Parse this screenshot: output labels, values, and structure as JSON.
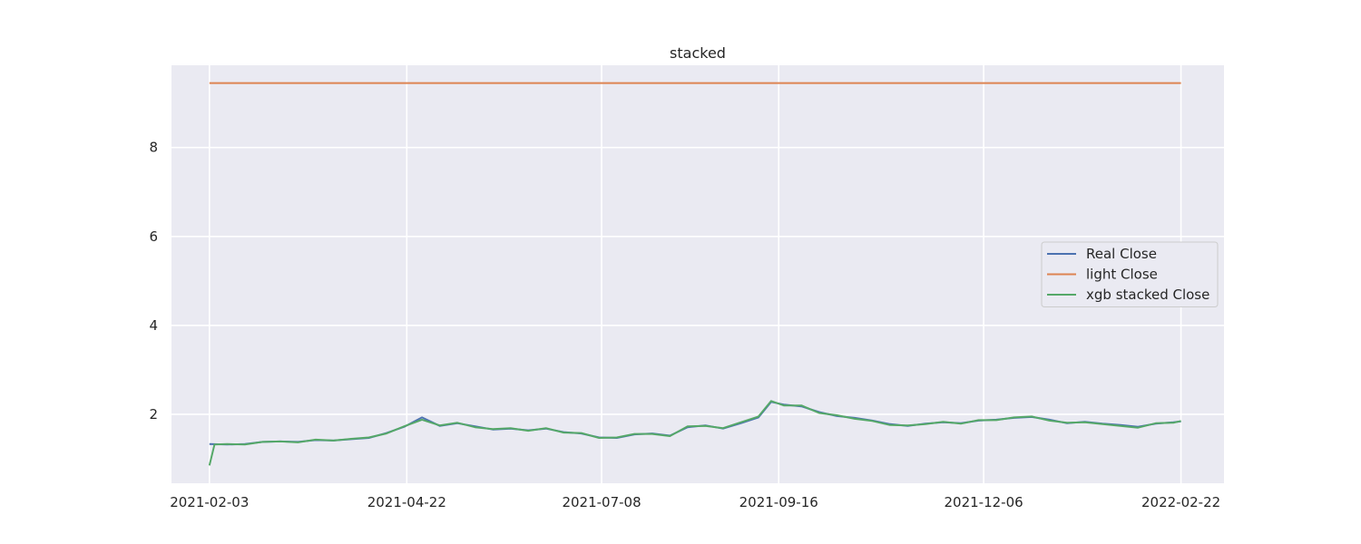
{
  "chart_data": {
    "type": "line",
    "title": "stacked",
    "xlabel": "",
    "ylabel": "",
    "x_ticks": [
      "2021-02-03",
      "2021-04-22",
      "2021-07-08",
      "2021-09-16",
      "2021-12-06",
      "2022-02-22"
    ],
    "y_ticks": [
      2,
      4,
      6,
      8
    ],
    "xlim": [
      "2021-01-19",
      "2022-03-11"
    ],
    "ylim": [
      0.45,
      9.85
    ],
    "grid": true,
    "legend_position": "center-right",
    "series": [
      {
        "name": "Real Close",
        "color": "#4c72b0",
        "points": [
          [
            "2021-02-03",
            1.33
          ],
          [
            "2021-02-10",
            1.32
          ],
          [
            "2021-02-17",
            1.33
          ],
          [
            "2021-02-24",
            1.38
          ],
          [
            "2021-03-03",
            1.39
          ],
          [
            "2021-03-10",
            1.38
          ],
          [
            "2021-03-17",
            1.42
          ],
          [
            "2021-03-24",
            1.41
          ],
          [
            "2021-03-31",
            1.44
          ],
          [
            "2021-04-07",
            1.47
          ],
          [
            "2021-04-14",
            1.58
          ],
          [
            "2021-04-21",
            1.72
          ],
          [
            "2021-04-28",
            1.93
          ],
          [
            "2021-05-05",
            1.74
          ],
          [
            "2021-05-12",
            1.8
          ],
          [
            "2021-05-19",
            1.73
          ],
          [
            "2021-05-26",
            1.66
          ],
          [
            "2021-06-02",
            1.68
          ],
          [
            "2021-06-09",
            1.64
          ],
          [
            "2021-06-16",
            1.68
          ],
          [
            "2021-06-23",
            1.6
          ],
          [
            "2021-06-30",
            1.57
          ],
          [
            "2021-07-07",
            1.48
          ],
          [
            "2021-07-14",
            1.47
          ],
          [
            "2021-07-21",
            1.55
          ],
          [
            "2021-07-28",
            1.57
          ],
          [
            "2021-08-04",
            1.52
          ],
          [
            "2021-08-11",
            1.71
          ],
          [
            "2021-08-18",
            1.75
          ],
          [
            "2021-08-25",
            1.68
          ],
          [
            "2021-09-01",
            1.8
          ],
          [
            "2021-09-08",
            1.93
          ],
          [
            "2021-09-13",
            2.28
          ],
          [
            "2021-09-18",
            2.22
          ],
          [
            "2021-09-25",
            2.18
          ],
          [
            "2021-10-02",
            2.05
          ],
          [
            "2021-10-09",
            1.96
          ],
          [
            "2021-10-16",
            1.92
          ],
          [
            "2021-10-23",
            1.86
          ],
          [
            "2021-10-30",
            1.78
          ],
          [
            "2021-11-06",
            1.74
          ],
          [
            "2021-11-13",
            1.79
          ],
          [
            "2021-11-20",
            1.82
          ],
          [
            "2021-11-27",
            1.8
          ],
          [
            "2021-12-04",
            1.86
          ],
          [
            "2021-12-11",
            1.88
          ],
          [
            "2021-12-18",
            1.92
          ],
          [
            "2021-12-25",
            1.94
          ],
          [
            "2022-01-01",
            1.88
          ],
          [
            "2022-01-08",
            1.8
          ],
          [
            "2022-01-15",
            1.83
          ],
          [
            "2022-01-22",
            1.79
          ],
          [
            "2022-01-29",
            1.76
          ],
          [
            "2022-02-05",
            1.72
          ],
          [
            "2022-02-12",
            1.79
          ],
          [
            "2022-02-19",
            1.82
          ],
          [
            "2022-02-22",
            1.84
          ]
        ]
      },
      {
        "name": "light Close",
        "color": "#dd8452",
        "points": [
          [
            "2021-02-03",
            9.45
          ],
          [
            "2022-02-22",
            9.45
          ]
        ]
      },
      {
        "name": "xgb stacked Close",
        "color": "#55a868",
        "points": [
          [
            "2021-02-03",
            0.85
          ],
          [
            "2021-02-05",
            1.32
          ],
          [
            "2021-02-10",
            1.33
          ],
          [
            "2021-02-17",
            1.32
          ],
          [
            "2021-02-24",
            1.38
          ],
          [
            "2021-03-03",
            1.39
          ],
          [
            "2021-03-10",
            1.37
          ],
          [
            "2021-03-17",
            1.43
          ],
          [
            "2021-03-24",
            1.41
          ],
          [
            "2021-03-31",
            1.45
          ],
          [
            "2021-04-07",
            1.48
          ],
          [
            "2021-04-14",
            1.57
          ],
          [
            "2021-04-21",
            1.73
          ],
          [
            "2021-04-28",
            1.88
          ],
          [
            "2021-05-05",
            1.75
          ],
          [
            "2021-05-12",
            1.81
          ],
          [
            "2021-05-19",
            1.71
          ],
          [
            "2021-05-26",
            1.67
          ],
          [
            "2021-06-02",
            1.69
          ],
          [
            "2021-06-09",
            1.63
          ],
          [
            "2021-06-16",
            1.69
          ],
          [
            "2021-06-23",
            1.59
          ],
          [
            "2021-06-30",
            1.58
          ],
          [
            "2021-07-07",
            1.47
          ],
          [
            "2021-07-14",
            1.48
          ],
          [
            "2021-07-21",
            1.56
          ],
          [
            "2021-07-28",
            1.56
          ],
          [
            "2021-08-04",
            1.51
          ],
          [
            "2021-08-11",
            1.73
          ],
          [
            "2021-08-18",
            1.74
          ],
          [
            "2021-08-25",
            1.69
          ],
          [
            "2021-09-01",
            1.82
          ],
          [
            "2021-09-08",
            1.95
          ],
          [
            "2021-09-13",
            2.3
          ],
          [
            "2021-09-18",
            2.2
          ],
          [
            "2021-09-25",
            2.2
          ],
          [
            "2021-10-02",
            2.03
          ],
          [
            "2021-10-09",
            1.98
          ],
          [
            "2021-10-16",
            1.9
          ],
          [
            "2021-10-23",
            1.85
          ],
          [
            "2021-10-30",
            1.76
          ],
          [
            "2021-11-06",
            1.75
          ],
          [
            "2021-11-13",
            1.78
          ],
          [
            "2021-11-20",
            1.83
          ],
          [
            "2021-11-27",
            1.79
          ],
          [
            "2021-12-04",
            1.87
          ],
          [
            "2021-12-11",
            1.87
          ],
          [
            "2021-12-18",
            1.93
          ],
          [
            "2021-12-25",
            1.95
          ],
          [
            "2022-01-01",
            1.86
          ],
          [
            "2022-01-08",
            1.81
          ],
          [
            "2022-01-15",
            1.82
          ],
          [
            "2022-01-22",
            1.78
          ],
          [
            "2022-01-29",
            1.74
          ],
          [
            "2022-02-05",
            1.7
          ],
          [
            "2022-02-12",
            1.8
          ],
          [
            "2022-02-19",
            1.81
          ],
          [
            "2022-02-22",
            1.85
          ]
        ]
      }
    ]
  }
}
